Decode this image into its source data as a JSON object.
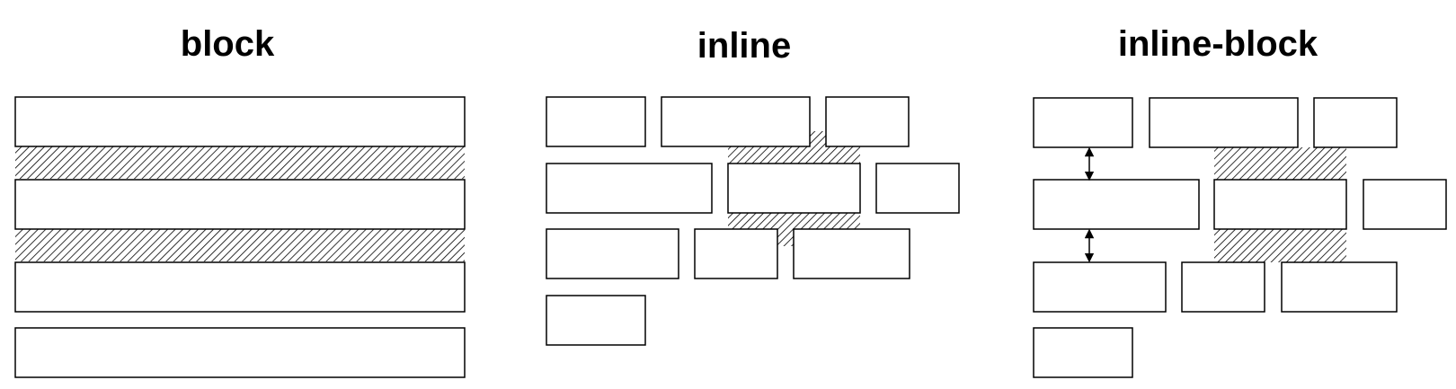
{
  "panels": [
    {
      "key": "block",
      "title": "block"
    },
    {
      "key": "inline",
      "title": "inline"
    },
    {
      "key": "inline_block",
      "title": "inline-block"
    }
  ],
  "colors": {
    "stroke": "#000000",
    "fill": "#ffffff",
    "hatch": "#000000",
    "text": "#000000"
  }
}
